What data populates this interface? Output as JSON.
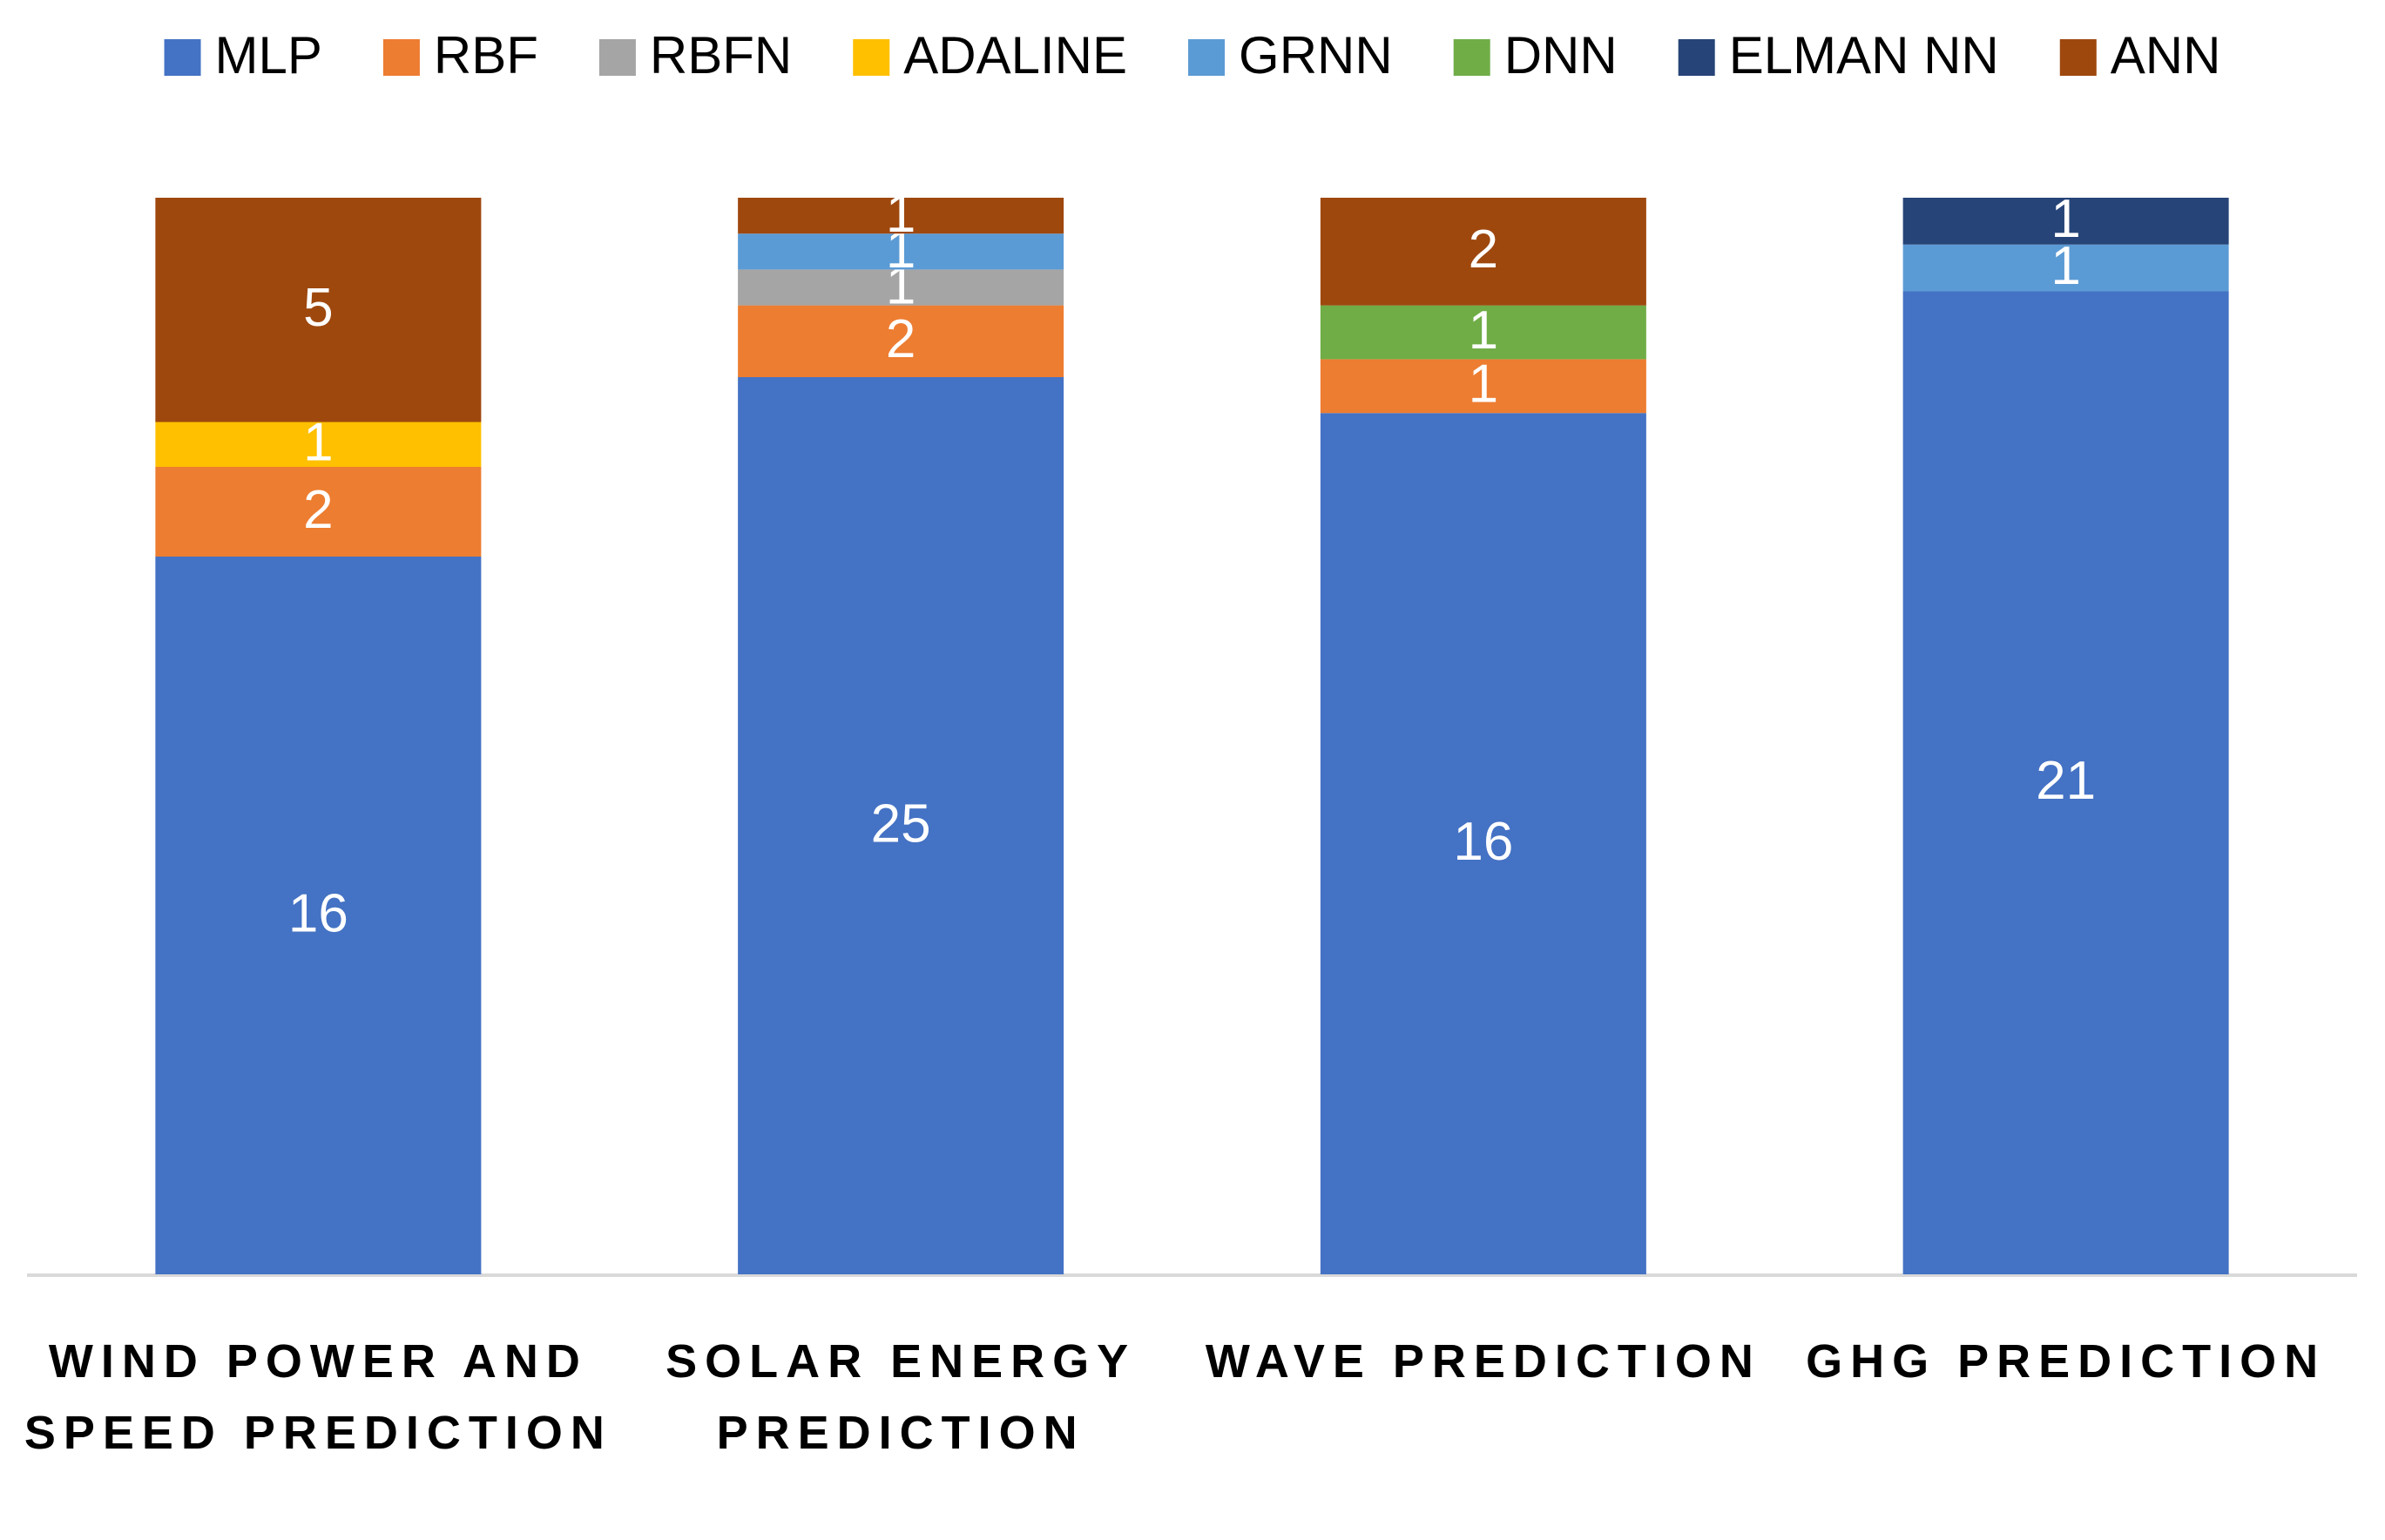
{
  "chart_data": {
    "type": "bar",
    "stacking": "percent",
    "categories": [
      "WIND POWER AND SPEED PREDICTION",
      "SOLAR ENERGY PREDICTION",
      "WAVE PREDICTION",
      "GHG PREDICTION"
    ],
    "series": [
      {
        "name": "MLP",
        "color": "#4472c4",
        "values": [
          16,
          25,
          16,
          21
        ]
      },
      {
        "name": "RBF",
        "color": "#ed7d31",
        "values": [
          2,
          2,
          1,
          null
        ]
      },
      {
        "name": "RBFN",
        "color": "#a5a5a5",
        "values": [
          null,
          1,
          null,
          null
        ]
      },
      {
        "name": "ADALINE",
        "color": "#ffc000",
        "values": [
          1,
          null,
          null,
          null
        ]
      },
      {
        "name": "GRNN",
        "color": "#5b9bd5",
        "values": [
          null,
          1,
          null,
          1
        ]
      },
      {
        "name": "DNN",
        "color": "#70ad47",
        "values": [
          null,
          null,
          1,
          null
        ]
      },
      {
        "name": "ELMAN NN",
        "color": "#264478",
        "values": [
          null,
          null,
          null,
          1
        ]
      },
      {
        "name": "ANN",
        "color": "#9e480e",
        "values": [
          5,
          1,
          2,
          null
        ]
      }
    ],
    "legend": "top"
  }
}
